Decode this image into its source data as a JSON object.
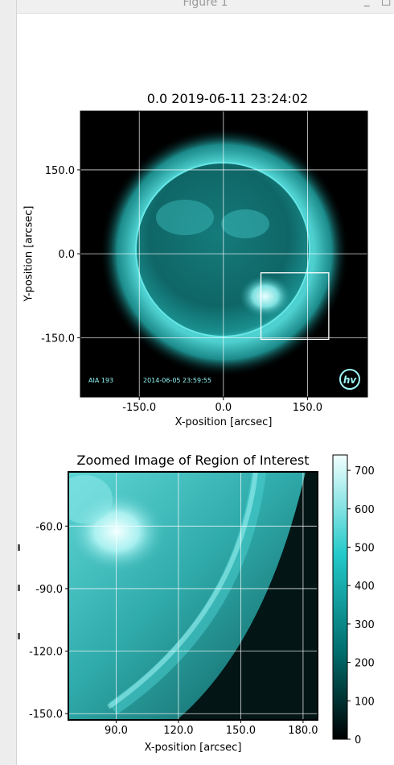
{
  "window": {
    "title": "Figure 1",
    "minimize_glyph": "_",
    "maximize_glyph": "□"
  },
  "chart_data": [
    {
      "type": "heatmap",
      "title": "0.0 2019-06-11 23:24:02",
      "xlabel": "X-position [arcsec]",
      "ylabel": "Y-position [arcsec]",
      "xticks": [
        -150.0,
        0.0,
        150.0
      ],
      "xtick_labels": [
        "-150.0",
        "0.0",
        "150.0"
      ],
      "yticks": [
        150.0,
        0.0,
        -150.0
      ],
      "ytick_labels": [
        "150.0",
        "0.0",
        "-150.0"
      ],
      "xlim": [
        -255,
        257
      ],
      "ylim": [
        -256,
        255
      ],
      "grid": true,
      "colormap": [
        "#000000",
        "#007777",
        "#20c6c6",
        "#e8ffff"
      ],
      "roi_box": {
        "x": [
          67,
          188
        ],
        "y": [
          -153,
          -34
        ]
      },
      "annotations": [
        "AIA 193",
        "2014-06-05 23:59:55"
      ],
      "logo_text": "hv"
    },
    {
      "type": "heatmap",
      "title": "Zoomed Image of Region of Interest",
      "xlabel": "X-position [arcsec]",
      "ylabel": "",
      "xticks": [
        90.0,
        120.0,
        150.0,
        180.0
      ],
      "xtick_labels": [
        "90.0",
        "120.0",
        "150.0",
        "180.0"
      ],
      "yticks": [
        -60.0,
        -90.0,
        -120.0,
        -150.0
      ],
      "ytick_labels": [
        "-60.0",
        "-90.0",
        "-120.0",
        "-150.0"
      ],
      "xlim": [
        67,
        187
      ],
      "ylim": [
        -153,
        -34
      ],
      "grid": true,
      "colorbar": {
        "range": [
          0,
          740
        ],
        "ticks": [
          0,
          100,
          200,
          300,
          400,
          500,
          600,
          700
        ],
        "tick_labels": [
          "0",
          "100",
          "200",
          "300",
          "400",
          "500",
          "600",
          "700"
        ]
      }
    }
  ]
}
